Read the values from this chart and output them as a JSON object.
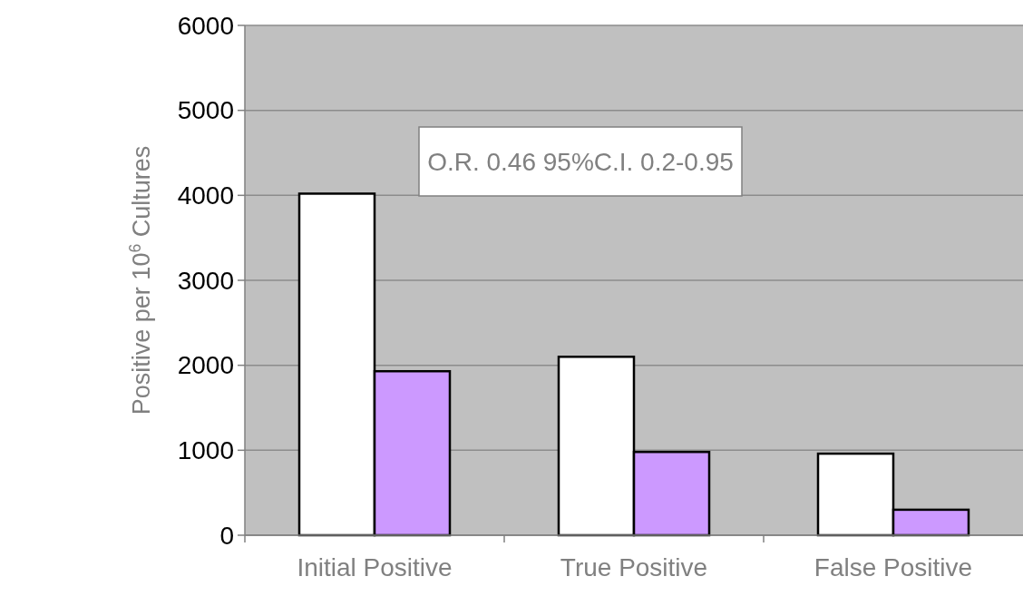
{
  "chart_data": {
    "type": "bar",
    "ylabel": "Positive per 10$^{6}$ Cultures",
    "categories": [
      "Initial Positive",
      "True Positive",
      "False Positive"
    ],
    "series": [
      {
        "color": "#ffffff",
        "values": [
          4020,
          2100,
          960
        ]
      },
      {
        "color": "#cc99ff",
        "values": [
          1930,
          980,
          300
        ]
      }
    ],
    "ylim": [
      0,
      6000
    ],
    "yticks": [
      0,
      1000,
      2000,
      3000,
      4000,
      5000,
      6000
    ],
    "grid": "y",
    "annotations": [
      "O.R. 0.46 95%C.I. 0.2-0.95"
    ]
  }
}
